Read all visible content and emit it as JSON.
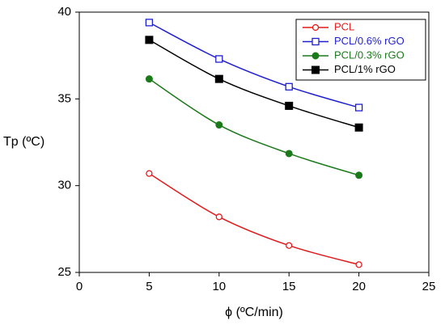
{
  "chart_data": {
    "type": "line",
    "title": "",
    "xlabel": "ϕ (ºC/min)",
    "ylabel": "Tp (ºC)",
    "xlim": [
      0,
      25
    ],
    "ylim": [
      25,
      40
    ],
    "x_ticks": [
      0,
      5,
      10,
      15,
      20,
      25
    ],
    "y_ticks": [
      25,
      30,
      35,
      40
    ],
    "x_tick_labels": [
      "0",
      "5",
      "10",
      "15",
      "20",
      "25"
    ],
    "y_tick_labels": [
      "25",
      "30",
      "35",
      "40"
    ],
    "grid": false,
    "legend_position": "top-right",
    "x": [
      5,
      10,
      15,
      20
    ],
    "series": [
      {
        "name": "PCL",
        "values": [
          30.7,
          28.2,
          26.55,
          25.45
        ],
        "color": "#e31a1c",
        "marker": "circle-open",
        "smooth": true
      },
      {
        "name": "PCL/0.6% rGO",
        "values": [
          39.4,
          37.3,
          35.7,
          34.5
        ],
        "color": "#1f1fd1",
        "marker": "square-open",
        "smooth": true
      },
      {
        "name": "PCL/0.3% rGO",
        "values": [
          36.15,
          33.5,
          31.85,
          30.6
        ],
        "color": "#1a7a1a",
        "marker": "circle-filled",
        "smooth": true
      },
      {
        "name": "PCL/1% rGO",
        "values": [
          38.4,
          36.15,
          34.6,
          33.35
        ],
        "color": "#000000",
        "marker": "square-filled",
        "smooth": true
      }
    ]
  }
}
